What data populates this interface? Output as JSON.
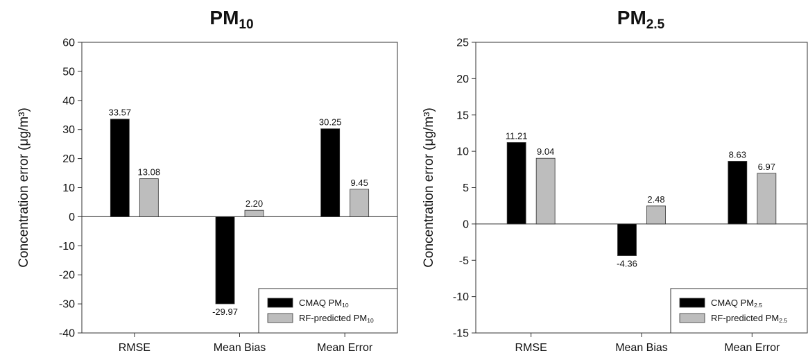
{
  "colors": {
    "cmaq": "#000000",
    "rf": "#bdbdbd",
    "axis": "#333333"
  },
  "chart_data": [
    {
      "type": "bar",
      "title_main": "PM",
      "title_sub": "10",
      "categories": [
        "RMSE",
        "Mean Bias",
        "Mean Error"
      ],
      "ylabel": "Concentration error (μg/m³)",
      "ylim": [
        -40,
        60
      ],
      "yticks": [
        -40,
        -30,
        -20,
        -10,
        0,
        10,
        20,
        30,
        40,
        50,
        60
      ],
      "legend_position": "bottom-right",
      "series": [
        {
          "name_main": "CMAQ PM",
          "name_sub": "10",
          "color_key": "cmaq",
          "values": [
            33.57,
            -29.97,
            30.25
          ],
          "labels": [
            "33.57",
            "-29.97",
            "30.25"
          ]
        },
        {
          "name_main": "RF-predicted PM",
          "name_sub": "10",
          "color_key": "rf",
          "values": [
            13.08,
            2.2,
            9.45
          ],
          "labels": [
            "13.08",
            "2.20",
            "9.45"
          ]
        }
      ]
    },
    {
      "type": "bar",
      "title_main": "PM",
      "title_sub": "2.5",
      "categories": [
        "RMSE",
        "Mean Bias",
        "Mean Error"
      ],
      "ylabel": "Concentration error (μg/m³)",
      "ylim": [
        -15,
        25
      ],
      "yticks": [
        -15,
        -10,
        -5,
        0,
        5,
        10,
        15,
        20,
        25
      ],
      "legend_position": "bottom-right",
      "series": [
        {
          "name_main": "CMAQ PM",
          "name_sub": "2.5",
          "color_key": "cmaq",
          "values": [
            11.21,
            -4.36,
            8.63
          ],
          "labels": [
            "11.21",
            "-4.36",
            "8.63"
          ]
        },
        {
          "name_main": "RF-predicted PM",
          "name_sub": "2.5",
          "color_key": "rf",
          "values": [
            9.04,
            2.48,
            6.97
          ],
          "labels": [
            "9.04",
            "2.48",
            "6.97"
          ]
        }
      ]
    }
  ]
}
